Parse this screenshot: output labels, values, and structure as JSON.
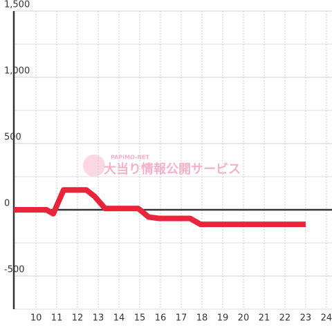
{
  "chart_data": {
    "type": "line",
    "watermark": {
      "brand": "PAPIMO-NET",
      "text": "大当り情報公開サービス"
    },
    "x": [
      8.93,
      10.5,
      10.83,
      11.33,
      12.43,
      12.83,
      13.33,
      14.93,
      15.43,
      15.93,
      17.43,
      17.93,
      23
    ],
    "series": [
      {
        "color": "#e8253a",
        "values": [
          0,
          0,
          -30,
          150,
          150,
          100,
          10,
          10,
          -55,
          -65,
          -65,
          -110,
          -110
        ]
      }
    ],
    "xlim": [
      8.93,
      24.27
    ],
    "ylim": [
      -750,
      1500
    ],
    "xticks": [
      10,
      11,
      12,
      13,
      14,
      15,
      16,
      17,
      18,
      19,
      20,
      21,
      22,
      23,
      24
    ],
    "yticks": [
      -500,
      0,
      500,
      {
        "value": 1000,
        "label": "1,000"
      },
      {
        "value": 1500,
        "label": "1,500"
      }
    ],
    "minor_yticks": [
      -750,
      -250,
      250,
      750,
      1250
    ],
    "grid": true
  }
}
